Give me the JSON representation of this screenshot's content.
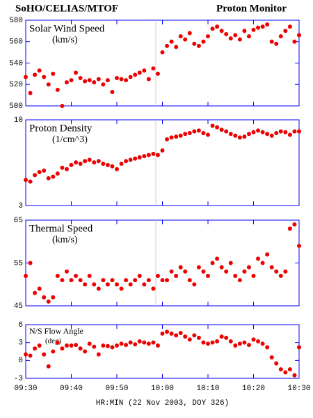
{
  "title_left": "SoHO/CELIAS/MTOF",
  "title_right": "Proton Monitor",
  "chart_data": [
    {
      "type": "scatter",
      "title": "Solar Wind Speed",
      "units": "(km/s)",
      "color": "#ee0000",
      "x": [
        570,
        571,
        572,
        573,
        574,
        575,
        576,
        577,
        578,
        579,
        580,
        581,
        582,
        583,
        584,
        585,
        586,
        587,
        588,
        589,
        590,
        591,
        592,
        593,
        594,
        595,
        596,
        597,
        598,
        599,
        600,
        601,
        602,
        603,
        604,
        605,
        606,
        607,
        608,
        609,
        610,
        611,
        612,
        613,
        614,
        615,
        616,
        617,
        618,
        619,
        620,
        621,
        622,
        623,
        624,
        625,
        626,
        627,
        628,
        629,
        630
      ],
      "values": [
        527,
        512,
        529,
        533,
        527,
        520,
        530,
        515,
        500,
        522,
        524,
        531,
        526,
        523,
        524,
        522,
        525,
        520,
        524,
        513,
        526,
        525,
        524,
        527,
        529,
        531,
        533,
        525,
        535,
        530,
        550,
        556,
        560,
        555,
        565,
        562,
        568,
        558,
        556,
        560,
        565,
        572,
        574,
        570,
        567,
        563,
        566,
        562,
        570,
        565,
        571,
        573,
        574,
        576,
        560,
        558,
        565,
        570,
        574,
        560,
        566
      ],
      "xlim": [
        570,
        630
      ],
      "xticks": [
        570,
        580,
        590,
        600,
        610,
        620,
        630
      ],
      "ylim": [
        500,
        580
      ],
      "yticks": [
        500,
        520,
        540,
        560,
        580
      ]
    },
    {
      "type": "scatter",
      "title": "Proton Density",
      "units": "(1/cm^3)",
      "color": "#ee0000",
      "ylog": true,
      "x": [
        570,
        571,
        572,
        573,
        574,
        575,
        576,
        577,
        578,
        579,
        580,
        581,
        582,
        583,
        584,
        585,
        586,
        587,
        588,
        589,
        590,
        591,
        592,
        593,
        594,
        595,
        596,
        597,
        598,
        599,
        600,
        601,
        602,
        603,
        604,
        605,
        606,
        607,
        608,
        609,
        610,
        611,
        612,
        613,
        614,
        615,
        616,
        617,
        618,
        619,
        620,
        621,
        622,
        623,
        624,
        625,
        626,
        627,
        628,
        629,
        630
      ],
      "values": [
        4.3,
        4.2,
        4.6,
        4.8,
        4.9,
        4.4,
        4.5,
        4.7,
        5.1,
        5.0,
        5.3,
        5.5,
        5.4,
        5.6,
        5.7,
        5.5,
        5.6,
        5.4,
        5.3,
        5.2,
        5.0,
        5.4,
        5.6,
        5.7,
        5.8,
        5.9,
        6.0,
        6.1,
        6.2,
        6.1,
        6.5,
        7.6,
        7.8,
        7.9,
        8.0,
        8.2,
        8.3,
        8.5,
        8.6,
        8.3,
        8.1,
        9.2,
        9.0,
        8.7,
        8.5,
        8.2,
        8.0,
        7.8,
        7.9,
        8.2,
        8.4,
        8.6,
        8.4,
        8.2,
        8.0,
        8.3,
        8.5,
        8.4,
        8.1,
        8.5,
        8.5
      ],
      "xlim": [
        570,
        630
      ],
      "xticks": [
        570,
        580,
        590,
        600,
        610,
        620,
        630
      ],
      "ylim": [
        3,
        10
      ],
      "yticks": [
        3,
        10
      ]
    },
    {
      "type": "scatter",
      "title": "Thermal Speed",
      "units": "(km/s)",
      "color": "#ee0000",
      "x": [
        570,
        571,
        572,
        573,
        574,
        575,
        576,
        577,
        578,
        579,
        580,
        581,
        582,
        583,
        584,
        585,
        586,
        587,
        588,
        589,
        590,
        591,
        592,
        593,
        594,
        595,
        596,
        597,
        598,
        599,
        600,
        601,
        602,
        603,
        604,
        605,
        606,
        607,
        608,
        609,
        610,
        611,
        612,
        613,
        614,
        615,
        616,
        617,
        618,
        619,
        620,
        621,
        622,
        623,
        624,
        625,
        626,
        627,
        628,
        629,
        630
      ],
      "values": [
        52,
        55,
        48,
        49,
        47,
        46,
        47,
        52,
        51,
        53,
        51,
        52,
        51,
        50,
        52,
        50,
        49,
        51,
        50,
        51,
        50,
        49,
        51,
        50,
        51,
        52,
        50,
        51,
        49,
        52,
        51,
        51,
        53,
        52,
        54,
        53,
        51,
        50,
        54,
        53,
        52,
        55,
        56,
        54,
        53,
        55,
        52,
        51,
        53,
        54,
        52,
        56,
        55,
        57,
        54,
        53,
        52,
        53,
        63,
        64,
        59
      ],
      "xlim": [
        570,
        630
      ],
      "xticks": [
        570,
        580,
        590,
        600,
        610,
        620,
        630
      ],
      "ylim": [
        45,
        65
      ],
      "yticks": [
        45,
        55,
        65
      ]
    },
    {
      "type": "scatter",
      "title": "N/S Flow Angle",
      "units": "(deg)",
      "color": "#ee0000",
      "xlabel": "HR:MIN (22 Nov 2003, DOY 326)",
      "x": [
        570,
        571,
        572,
        573,
        574,
        575,
        576,
        577,
        578,
        579,
        580,
        581,
        582,
        583,
        584,
        585,
        586,
        587,
        588,
        589,
        590,
        591,
        592,
        593,
        594,
        595,
        596,
        597,
        598,
        599,
        600,
        601,
        602,
        603,
        604,
        605,
        606,
        607,
        608,
        609,
        610,
        611,
        612,
        613,
        614,
        615,
        616,
        617,
        618,
        619,
        620,
        621,
        622,
        623,
        624,
        625,
        626,
        627,
        628,
        629,
        630
      ],
      "values": [
        1,
        0.8,
        2,
        2.5,
        1,
        -1,
        1.5,
        3,
        2,
        2.5,
        2.5,
        2.6,
        2,
        1.5,
        2.8,
        2.3,
        1,
        2.5,
        2.4,
        2.2,
        2.5,
        2.8,
        2.6,
        3,
        2.7,
        3.2,
        3,
        2.8,
        3,
        2.5,
        4.5,
        4.8,
        4.5,
        4.2,
        4.6,
        4,
        3.5,
        4.2,
        3.8,
        3,
        2.8,
        3,
        3.2,
        4,
        3.8,
        3.2,
        2.5,
        2.8,
        3,
        2.6,
        3.5,
        3.2,
        2.8,
        2.2,
        0.5,
        -0.5,
        -1.5,
        -2,
        -1.5,
        -2.5,
        2.2
      ],
      "xlim": [
        570,
        630
      ],
      "xticks": [
        {
          "value": 570,
          "label": "09:30"
        },
        {
          "value": 580,
          "label": "09:40"
        },
        {
          "value": 590,
          "label": "09:50"
        },
        {
          "value": 600,
          "label": "10:00"
        },
        {
          "value": 610,
          "label": "10:10"
        },
        {
          "value": 620,
          "label": "10:20"
        },
        {
          "value": 630,
          "label": "10:30"
        }
      ],
      "ylim": [
        -3,
        6
      ],
      "yticks": [
        -3,
        0,
        3,
        6
      ]
    }
  ]
}
